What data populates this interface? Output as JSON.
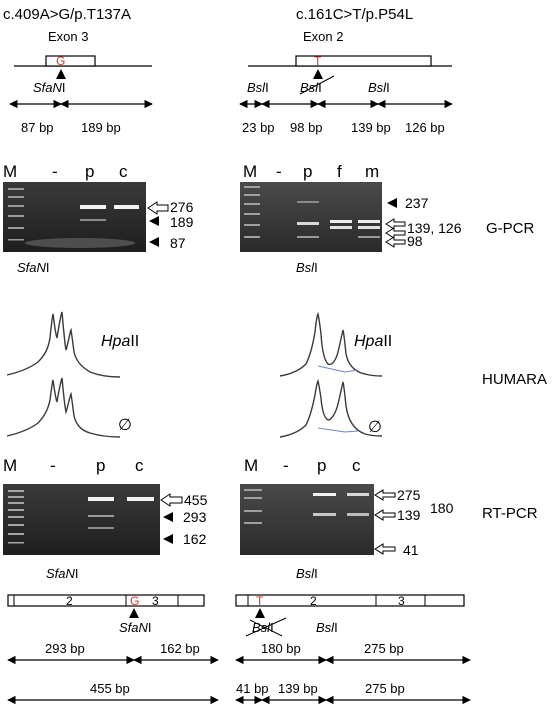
{
  "left": {
    "mutation": "c.409A>G/p.T137A",
    "exon": "Exon 3",
    "mut_base": "G",
    "enzyme": "SfaN",
    "enzyme_suffix": "I",
    "g_sizes": [
      "87 bp",
      "189 bp"
    ],
    "lanes": [
      "M",
      "-",
      "p",
      "c"
    ],
    "g_bands": [
      "276",
      "189",
      "87"
    ],
    "rt_lanes": [
      "M",
      "-",
      "p",
      "c"
    ],
    "rt_bands": [
      "455",
      "293",
      "162"
    ],
    "rt_exons": [
      "2",
      "3"
    ],
    "rt_sizes_top": [
      "293 bp",
      "162 bp"
    ],
    "rt_sizes_bottom": [
      "455 bp"
    ]
  },
  "right": {
    "mutation": "c.161C>T/p.P54L",
    "exon": "Exon 2",
    "mut_base": "T",
    "enzyme": "Bsl",
    "enzyme_suffix": "I",
    "g_sizes": [
      "23 bp",
      "98 bp",
      "139 bp",
      "126 bp"
    ],
    "lanes": [
      "M",
      "-",
      "p",
      "f",
      "m"
    ],
    "g_bands": [
      "237",
      "139, 126",
      "98"
    ],
    "rt_lanes": [
      "M",
      "-",
      "p",
      "c"
    ],
    "rt_bands": [
      "275",
      "180",
      "139",
      "41"
    ],
    "rt_exons": [
      "2",
      "3"
    ],
    "rt_sizes_top": [
      "180 bp",
      "275 bp"
    ],
    "rt_sizes_bottom": [
      "41 bp",
      "139 bp",
      "275 bp"
    ]
  },
  "sections": {
    "gpcr": "G-PCR",
    "humara": "HUMARA",
    "rtpcr": "RT-PCR"
  },
  "humara": {
    "enzyme": "Hpa",
    "enzyme_suffix": "II",
    "null_symbol": "∅"
  },
  "colors": {
    "mutation": "#e8331c",
    "gel": "#2b2b2b",
    "band": "#f2f2f2",
    "trace": "#3a3a3a"
  }
}
